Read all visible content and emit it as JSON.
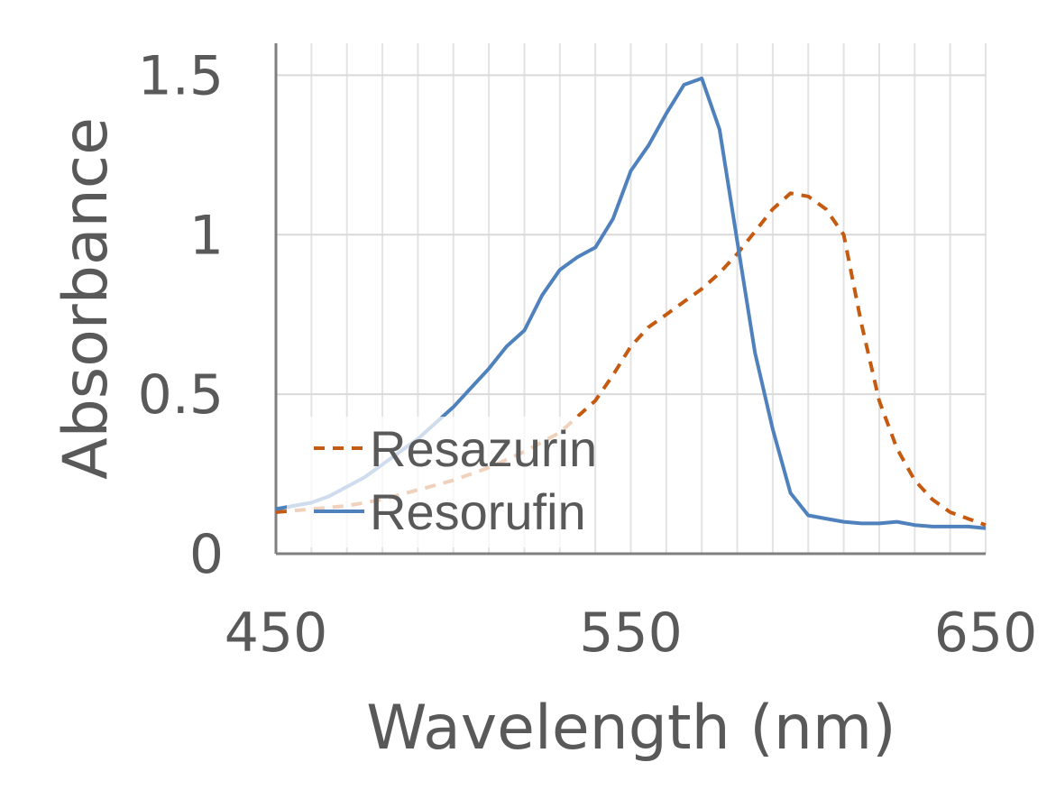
{
  "chart_data": {
    "type": "line",
    "xlabel": "Wavelength (nm)",
    "ylabel": "Absorbance",
    "xlim": [
      450,
      650
    ],
    "ylim": [
      0,
      1.6
    ],
    "x_ticks": [
      450,
      550,
      650
    ],
    "x_tick_labels": [
      "450",
      "550",
      "650"
    ],
    "y_ticks": [
      0,
      0.5,
      1,
      1.5
    ],
    "y_tick_labels": [
      "0",
      "0.5",
      "1",
      "1.5"
    ],
    "x_gridlines": [
      450,
      460,
      470,
      480,
      490,
      500,
      510,
      520,
      530,
      540,
      550,
      560,
      570,
      580,
      590,
      600,
      610,
      620,
      630,
      640,
      650
    ],
    "grid": true,
    "legend_position": "bottom-left",
    "series": [
      {
        "name": "Resazurin",
        "color": "#C55A11",
        "dash": "dashed",
        "x": [
          450,
          460,
          470,
          480,
          490,
          500,
          510,
          520,
          530,
          540,
          545,
          550,
          555,
          560,
          565,
          570,
          575,
          580,
          585,
          590,
          595,
          600,
          605,
          610,
          615,
          620,
          625,
          630,
          635,
          640,
          645,
          650
        ],
        "y": [
          0.13,
          0.14,
          0.15,
          0.17,
          0.2,
          0.23,
          0.27,
          0.32,
          0.38,
          0.48,
          0.56,
          0.65,
          0.71,
          0.75,
          0.79,
          0.83,
          0.88,
          0.94,
          1.01,
          1.08,
          1.13,
          1.12,
          1.08,
          1.0,
          0.72,
          0.48,
          0.33,
          0.23,
          0.17,
          0.13,
          0.11,
          0.09
        ]
      },
      {
        "name": "Resorufin",
        "color": "#4F81BD",
        "dash": "solid",
        "x": [
          450,
          455,
          460,
          465,
          470,
          475,
          480,
          485,
          490,
          495,
          500,
          505,
          510,
          515,
          520,
          525,
          530,
          535,
          540,
          545,
          550,
          555,
          560,
          565,
          570,
          575,
          580,
          585,
          590,
          595,
          600,
          605,
          610,
          615,
          620,
          625,
          630,
          635,
          640,
          645,
          650
        ],
        "y": [
          0.14,
          0.15,
          0.16,
          0.18,
          0.21,
          0.24,
          0.28,
          0.32,
          0.36,
          0.41,
          0.46,
          0.52,
          0.58,
          0.65,
          0.7,
          0.81,
          0.89,
          0.93,
          0.96,
          1.05,
          1.2,
          1.28,
          1.38,
          1.47,
          1.49,
          1.33,
          0.98,
          0.63,
          0.39,
          0.19,
          0.12,
          0.11,
          0.1,
          0.095,
          0.095,
          0.1,
          0.09,
          0.085,
          0.085,
          0.085,
          0.08
        ]
      }
    ]
  }
}
